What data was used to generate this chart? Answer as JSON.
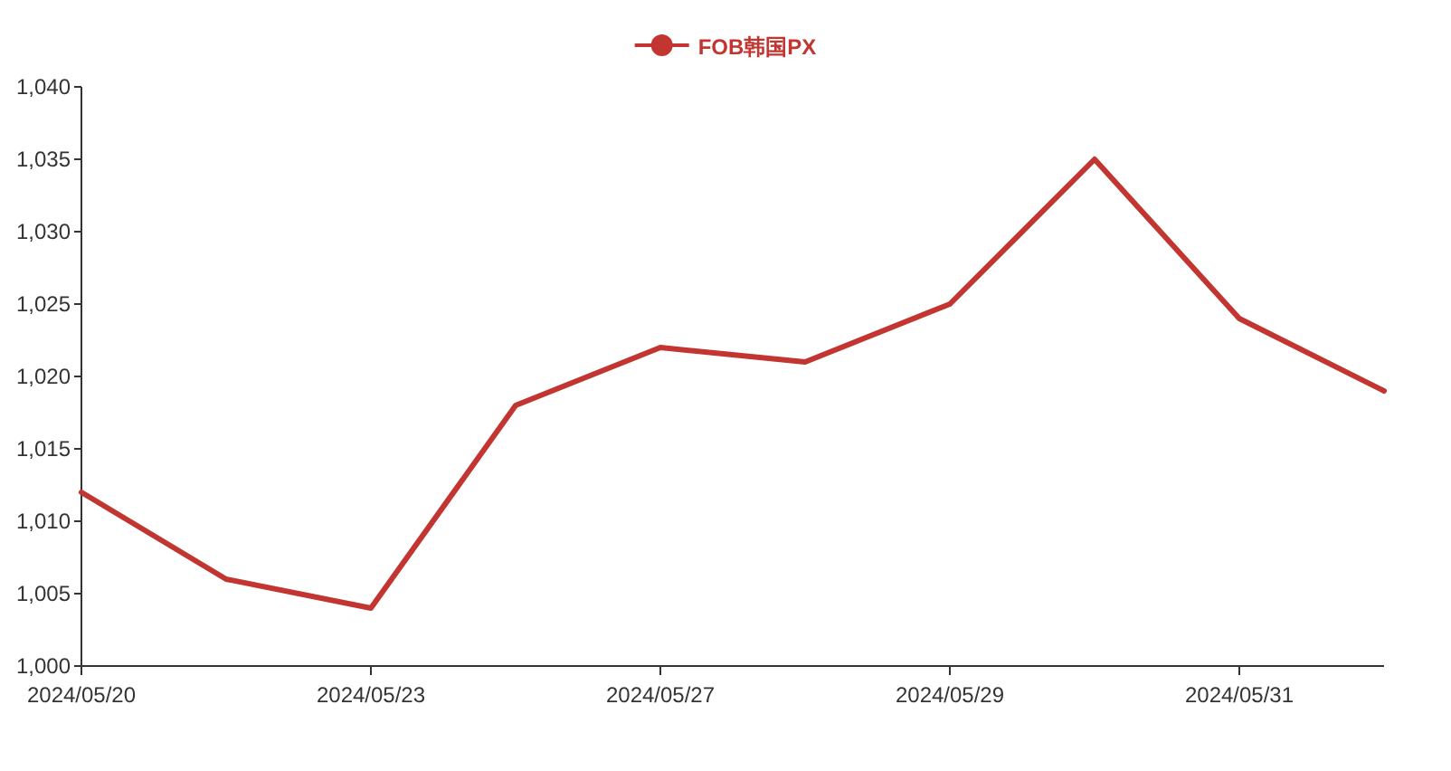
{
  "chart_data": {
    "type": "line",
    "categories": [
      "2024/05/20",
      null,
      "2024/05/23",
      null,
      "2024/05/27",
      null,
      "2024/05/29",
      null,
      "2024/05/31",
      null
    ],
    "series": [
      {
        "name": "FOB韩国PX",
        "color": "#c23531",
        "values": [
          1012,
          1006,
          1004,
          1018,
          1022,
          1021,
          1025,
          1035,
          1024,
          1019
        ]
      }
    ],
    "ylim": [
      1000,
      1040
    ],
    "yticks": [
      {
        "value": 1000,
        "label": "1,000"
      },
      {
        "value": 1005,
        "label": "1,005"
      },
      {
        "value": 1010,
        "label": "1,010"
      },
      {
        "value": 1015,
        "label": "1,015"
      },
      {
        "value": 1020,
        "label": "1,020"
      },
      {
        "value": 1025,
        "label": "1,025"
      },
      {
        "value": 1030,
        "label": "1,030"
      },
      {
        "value": 1035,
        "label": "1,035"
      },
      {
        "value": 1040,
        "label": "1,040"
      }
    ],
    "grid": false,
    "legend": "top",
    "marker": "none",
    "line_style": "solid"
  }
}
